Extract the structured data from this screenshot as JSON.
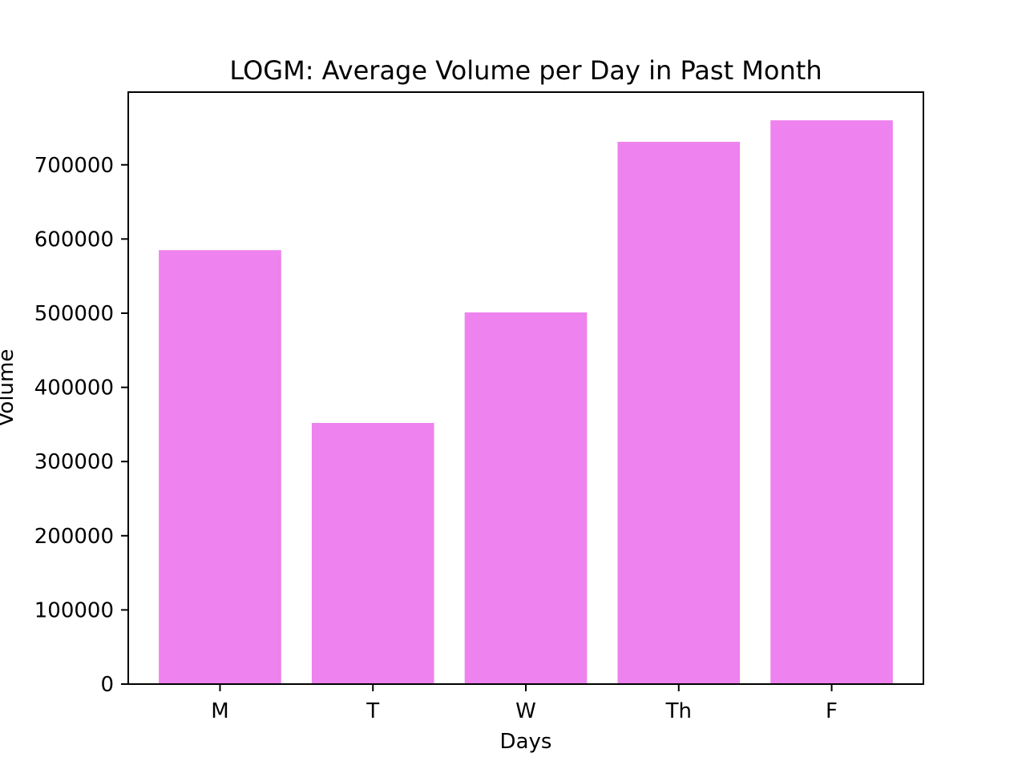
{
  "chart_data": {
    "type": "bar",
    "title": "LOGM: Average Volume per Day in Past Month",
    "xlabel": "Days",
    "ylabel": "Volume",
    "categories": [
      "M",
      "T",
      "W",
      "Th",
      "F"
    ],
    "values": [
      585000,
      352000,
      501000,
      731000,
      760000
    ],
    "ylim": [
      0,
      798000
    ],
    "yticks": [
      0,
      100000,
      200000,
      300000,
      400000,
      500000,
      600000,
      700000
    ],
    "ytick_labels": [
      "0",
      "100000",
      "200000",
      "300000",
      "400000",
      "500000",
      "600000",
      "700000"
    ],
    "bar_color": "#ee82ee",
    "grid": false,
    "legend": "none"
  }
}
